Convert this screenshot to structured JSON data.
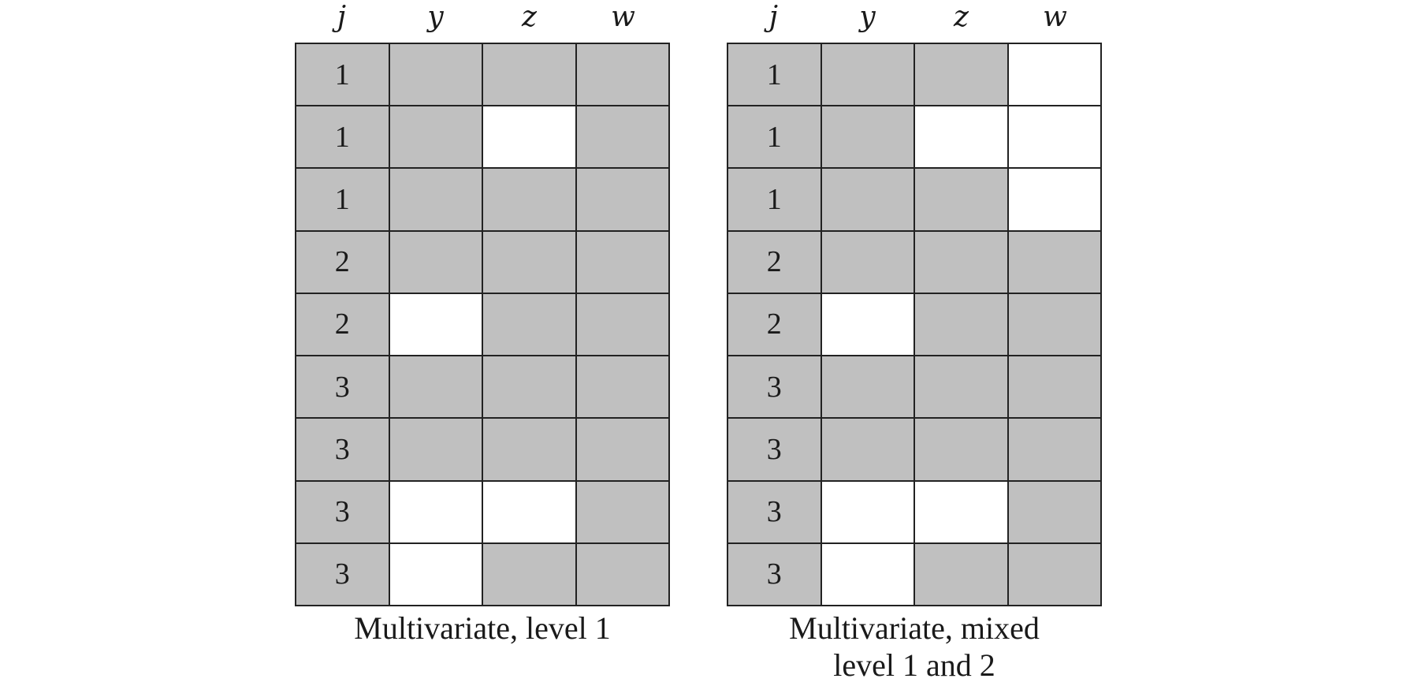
{
  "columns": [
    "j",
    "y",
    "z",
    "w"
  ],
  "colors": {
    "observed": "#c0c0c0",
    "missing": "#ffffff",
    "border": "#222222"
  },
  "panels": [
    {
      "caption": [
        "Multivariate, level 1"
      ],
      "rows": [
        {
          "j": "1",
          "observed": [
            true,
            true,
            true
          ]
        },
        {
          "j": "1",
          "observed": [
            true,
            false,
            true
          ]
        },
        {
          "j": "1",
          "observed": [
            true,
            true,
            true
          ]
        },
        {
          "j": "2",
          "observed": [
            true,
            true,
            true
          ]
        },
        {
          "j": "2",
          "observed": [
            false,
            true,
            true
          ]
        },
        {
          "j": "3",
          "observed": [
            true,
            true,
            true
          ]
        },
        {
          "j": "3",
          "observed": [
            true,
            true,
            true
          ]
        },
        {
          "j": "3",
          "observed": [
            false,
            false,
            true
          ]
        },
        {
          "j": "3",
          "observed": [
            false,
            true,
            true
          ]
        }
      ]
    },
    {
      "caption": [
        "Multivariate, mixed",
        "level 1 and 2"
      ],
      "rows": [
        {
          "j": "1",
          "observed": [
            true,
            true,
            false
          ]
        },
        {
          "j": "1",
          "observed": [
            true,
            false,
            false
          ]
        },
        {
          "j": "1",
          "observed": [
            true,
            true,
            false
          ]
        },
        {
          "j": "2",
          "observed": [
            true,
            true,
            true
          ]
        },
        {
          "j": "2",
          "observed": [
            false,
            true,
            true
          ]
        },
        {
          "j": "3",
          "observed": [
            true,
            true,
            true
          ]
        },
        {
          "j": "3",
          "observed": [
            true,
            true,
            true
          ]
        },
        {
          "j": "3",
          "observed": [
            false,
            false,
            true
          ]
        },
        {
          "j": "3",
          "observed": [
            false,
            true,
            true
          ]
        }
      ]
    }
  ]
}
